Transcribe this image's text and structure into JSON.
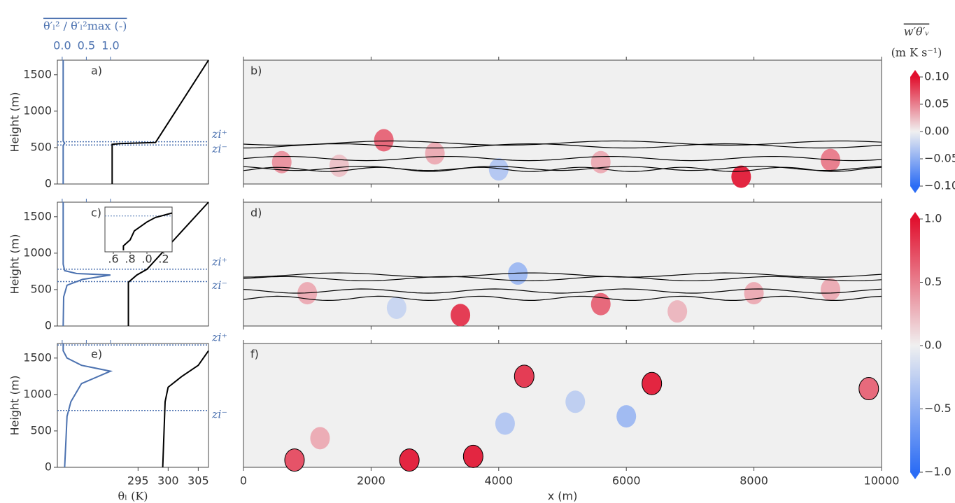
{
  "chart_data": [
    {
      "type": "line",
      "panel_label": "a)",
      "ylabel": "Height (m)",
      "x2label": "θ′ₗ² / θ′ₗ²max (-)",
      "xlim": [
        281.6,
        306.7
      ],
      "x2lim": [
        -0.1,
        3.03
      ],
      "ylim": [
        0,
        1700
      ],
      "yticks": [
        0,
        500,
        1000,
        1500
      ],
      "x2ticks": [
        {
          "value": 0,
          "label": "0.0"
        },
        {
          "value": 0.5,
          "label": "0.5"
        },
        {
          "value": 1,
          "label": "1.0"
        }
      ],
      "series": [
        {
          "color": "#4c72b0",
          "axis": "x2",
          "x": [
            0.02,
            0.02,
            0.05,
            0.02,
            0.02
          ],
          "y": [
            0,
            530,
            560,
            590,
            1700
          ]
        },
        {
          "color": "#000000",
          "x": [
            290.7,
            290.7,
            292,
            297.9,
            306.7
          ],
          "y": [
            0,
            545,
            555,
            570,
            1700
          ]
        }
      ],
      "zi": [
        {
          "label": "zi⁺",
          "value": 580
        },
        {
          "label": "zi⁻",
          "value": 535
        }
      ]
    },
    {
      "type": "heatmap",
      "panel_label": "b)",
      "xlim": [
        0,
        10000
      ],
      "ylim": [
        0,
        1700
      ],
      "cells": {
        "x": [
          7800,
          2200,
          9200,
          600,
          4000,
          3000,
          5600,
          1500
        ],
        "y": [
          100,
          600,
          330,
          300,
          200,
          420,
          300,
          250
        ],
        "values": [
          0.09,
          0.06,
          0.05,
          0.04,
          -0.03,
          0.03,
          0.03,
          0.02
        ]
      },
      "colorbar": {
        "label": "w′θ′ᵥ",
        "unit": "(m K s⁻¹)",
        "lim": [
          -0.1,
          0.1
        ],
        "ticks": [
          {
            "value": 0.1,
            "label": "0.10"
          },
          {
            "value": 0.05,
            "label": "0.05"
          },
          {
            "value": 0,
            "label": "0.00"
          },
          {
            "value": -0.05,
            "label": "−0.05"
          },
          {
            "value": -0.1,
            "label": "−0.10"
          }
        ]
      }
    },
    {
      "type": "line",
      "panel_label": "c)",
      "ylabel": "Height (m)",
      "xlim": [
        281.6,
        306.7
      ],
      "x2lim": [
        -0.1,
        3.03
      ],
      "ylim": [
        0,
        1700
      ],
      "yticks": [
        0,
        500,
        1000,
        1500
      ],
      "series": [
        {
          "color": "#4c72b0",
          "axis": "x2",
          "x": [
            0.02,
            0.03,
            0.1,
            0.42,
            1.0,
            0.3,
            0.05,
            0.02,
            0.02
          ],
          "y": [
            0,
            400,
            560,
            640,
            700,
            720,
            760,
            850,
            1700
          ]
        },
        {
          "color": "#000000",
          "x": [
            293.4,
            293.4,
            294.8,
            296.5,
            306.7
          ],
          "y": [
            0,
            600,
            700,
            780,
            1700
          ]
        }
      ],
      "zi": [
        {
          "label": "zi⁺",
          "value": 780
        },
        {
          "label": "zi⁻",
          "value": 610
        }
      ],
      "inset": {
        "xlim": [
          297.5,
          298.3
        ],
        "ylim": [
          500,
          800
        ],
        "xticks": [
          {
            "value": 297.6,
            "label": ".6"
          },
          {
            "value": 297.8,
            "label": ".8"
          },
          {
            "value": 298.0,
            "label": ".0"
          },
          {
            "value": 298.2,
            "label": ".2"
          }
        ],
        "x": [
          297.72,
          297.72,
          297.8,
          297.85,
          298.0,
          298.1,
          298.3
        ],
        "y": [
          510,
          540,
          580,
          640,
          700,
          730,
          760
        ],
        "zi": 740
      }
    },
    {
      "type": "heatmap",
      "panel_label": "d)",
      "xlim": [
        0,
        10000
      ],
      "ylim": [
        0,
        1700
      ],
      "cells": {
        "x": [
          3400,
          5600,
          4300,
          1000,
          8000,
          2400,
          6800,
          9200
        ],
        "y": [
          150,
          300,
          720,
          450,
          450,
          250,
          200,
          500
        ],
        "values": [
          0.8,
          0.6,
          -0.4,
          0.3,
          0.3,
          -0.2,
          0.25,
          0.3
        ]
      },
      "colorbar": {
        "lim": [
          -1,
          1
        ],
        "ticks": [
          {
            "value": 1,
            "label": "1.0"
          },
          {
            "value": 0.5,
            "label": "0.5"
          },
          {
            "value": 0,
            "label": "0.0"
          },
          {
            "value": -0.5,
            "label": "−0.5"
          },
          {
            "value": -1,
            "label": "−1.0"
          }
        ]
      }
    },
    {
      "type": "line",
      "panel_label": "e)",
      "ylabel": "Height (m)",
      "xlabel": "θₗ (K)",
      "xlim": [
        281.6,
        306.7
      ],
      "x2lim": [
        -0.1,
        3.03
      ],
      "ylim": [
        0,
        1700
      ],
      "yticks": [
        0,
        500,
        1000,
        1500
      ],
      "xticks": [
        295,
        300,
        305
      ],
      "series": [
        {
          "color": "#4c72b0",
          "axis": "x2",
          "x": [
            0.05,
            0.08,
            0.1,
            0.18,
            0.4,
            1.0,
            0.4,
            0.1,
            0.02,
            0.02
          ],
          "y": [
            0,
            400,
            700,
            900,
            1150,
            1320,
            1400,
            1500,
            1600,
            1700
          ]
        },
        {
          "color": "#000000",
          "x": [
            299.1,
            299.5,
            300,
            302.3,
            305,
            306.7
          ],
          "y": [
            0,
            900,
            1100,
            1250,
            1400,
            1600
          ]
        }
      ],
      "zi": [
        {
          "label": "zi⁺",
          "value": 1680
        },
        {
          "label": "zi⁻",
          "value": 780
        }
      ]
    },
    {
      "type": "heatmap",
      "panel_label": "f)",
      "xlabel": "x (m)",
      "xlim": [
        0,
        10000
      ],
      "ylim": [
        0,
        1700
      ],
      "xticks": [
        0,
        2000,
        4000,
        6000,
        8000,
        10000
      ],
      "cells": {
        "x": [
          3600,
          6400,
          4400,
          2600,
          800,
          9800,
          4100,
          6000,
          1200,
          5200
        ],
        "y": [
          150,
          1150,
          1250,
          100,
          100,
          1080,
          600,
          700,
          400,
          900
        ],
        "values": [
          0.9,
          0.9,
          0.8,
          0.9,
          0.7,
          0.6,
          -0.3,
          -0.4,
          0.3,
          -0.25
        ]
      }
    }
  ]
}
